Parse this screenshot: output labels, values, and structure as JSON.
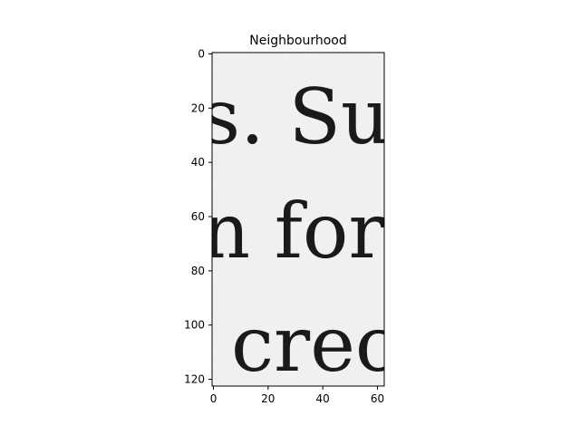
{
  "figure": {
    "title": "Neighbourhood",
    "image_text_lines": [
      "s. Su",
      "n for",
      "crec"
    ],
    "colors": {
      "background": "#ffffff",
      "paper": "#efefef",
      "ink": "#1a1a1a",
      "axis": "#000000"
    }
  },
  "chart_data": {
    "type": "image",
    "title": "Neighbourhood",
    "xlabel": "",
    "ylabel": "",
    "xlim": [
      -0.5,
      62.5
    ],
    "ylim": [
      122.5,
      -0.5
    ],
    "xticks": [
      0,
      20,
      40,
      60
    ],
    "yticks": [
      0,
      20,
      40,
      60,
      80,
      100,
      120
    ],
    "grid": false,
    "colormap": "gray"
  }
}
